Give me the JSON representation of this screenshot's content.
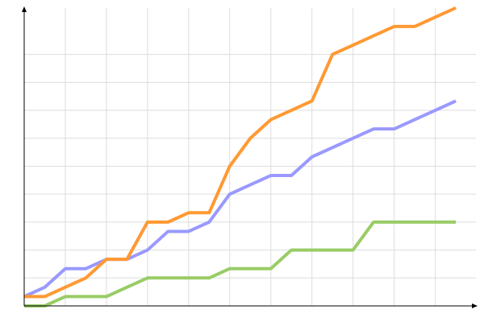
{
  "chart_data": {
    "type": "line",
    "title": "",
    "xlabel": "",
    "ylabel": "",
    "x": [
      0,
      1,
      2,
      3,
      4,
      5,
      6,
      7,
      8,
      9,
      10,
      11,
      12,
      13,
      14,
      15,
      16,
      17,
      18,
      19,
      20,
      21
    ],
    "xlim": [
      0,
      22
    ],
    "ylim": [
      0,
      32
    ],
    "grid": true,
    "x_grid_step": 2,
    "y_grid_step": 3,
    "legend": "none",
    "series": [
      {
        "color": "#ff9933",
        "values": [
          1,
          1,
          2,
          3,
          5,
          5,
          9,
          9,
          10,
          10,
          15,
          18,
          20,
          21,
          22,
          27,
          28,
          29,
          30,
          30,
          31,
          32
        ]
      },
      {
        "color": "#9999ff",
        "values": [
          1,
          2,
          4,
          4,
          5,
          5,
          6,
          8,
          8,
          9,
          12,
          13,
          14,
          14,
          16,
          17,
          18,
          19,
          19,
          20,
          21,
          22
        ]
      },
      {
        "color": "#99cc66",
        "values": [
          0,
          0,
          1,
          1,
          1,
          2,
          3,
          3,
          3,
          3,
          4,
          4,
          4,
          6,
          6,
          6,
          6,
          9,
          9,
          9,
          9,
          9
        ]
      }
    ]
  }
}
